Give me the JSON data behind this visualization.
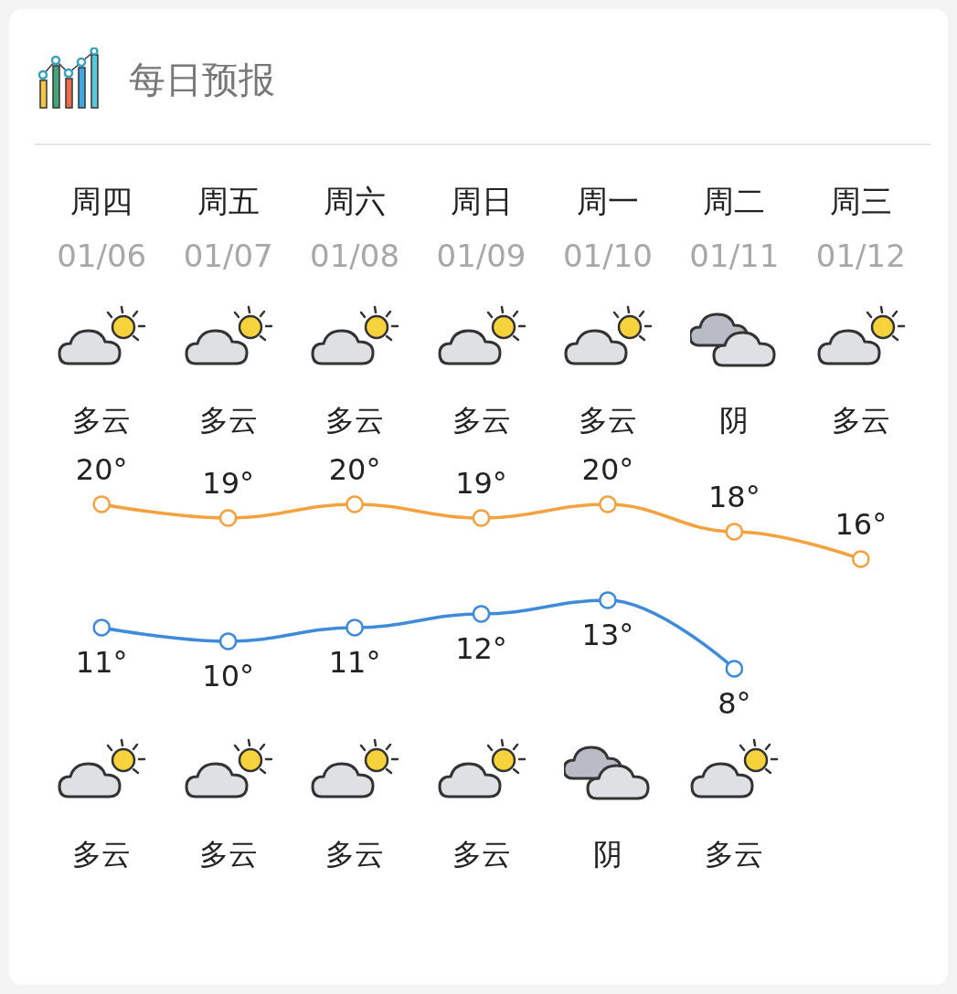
{
  "chart_data": {
    "type": "line",
    "title": "每日预报",
    "categories": [
      "周四",
      "周五",
      "周六",
      "周日",
      "周一",
      "周二",
      "周三"
    ],
    "series": [
      {
        "color": "#f4a23f",
        "values": [
          20,
          19,
          20,
          19,
          20,
          18,
          16
        ],
        "value_labels": [
          "20°",
          "19°",
          "20°",
          "19°",
          "20°",
          "18°",
          "16°"
        ]
      },
      {
        "color": "#3f8bdb",
        "values": [
          11,
          10,
          11,
          12,
          13,
          8,
          null
        ],
        "value_labels": [
          "11°",
          "10°",
          "11°",
          "12°",
          "13°",
          "8°",
          null
        ]
      }
    ],
    "annotations": [
      "01/06",
      "01/07",
      "01/08",
      "01/09",
      "01/10",
      "01/11",
      "01/12",
      "多云",
      "多云",
      "多云",
      "多云",
      "多云",
      "阴",
      "多云",
      "多云",
      "多云",
      "多云",
      "多云",
      "阴",
      "多云"
    ],
    "tick_labels": "x",
    "grid": false,
    "marker": "circle",
    "line_style": "solid"
  }
}
